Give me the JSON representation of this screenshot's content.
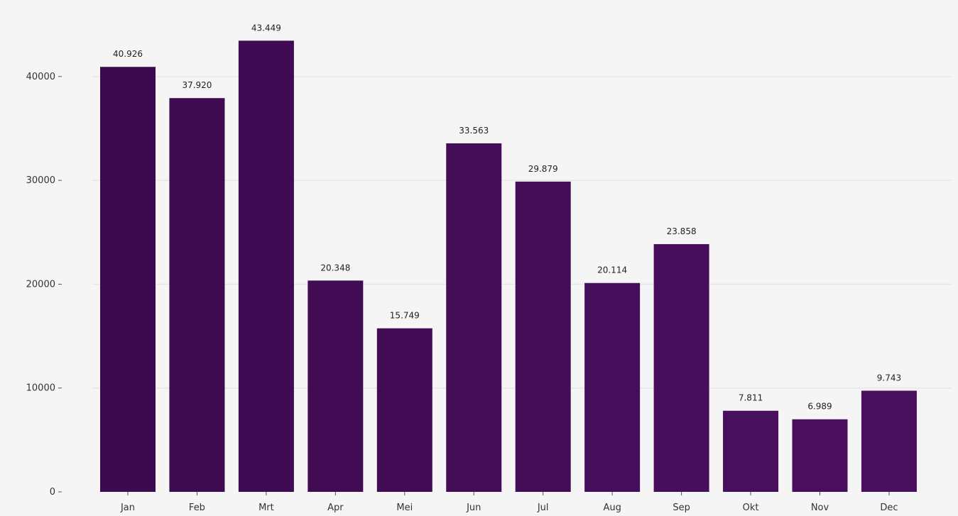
{
  "chart_data": {
    "type": "bar",
    "title": "",
    "xlabel": "",
    "ylabel": "",
    "categories": [
      "Jan",
      "Feb",
      "Mrt",
      "Apr",
      "Mei",
      "Jun",
      "Jul",
      "Aug",
      "Sep",
      "Okt",
      "Nov",
      "Dec"
    ],
    "values": [
      40926,
      37920,
      43449,
      20348,
      15749,
      33563,
      29879,
      20114,
      23858,
      7811,
      6989,
      9743
    ],
    "value_labels": [
      "40.926",
      "37.920",
      "43.449",
      "20.348",
      "15.749",
      "33.563",
      "29.879",
      "20.114",
      "23.858",
      "7.811",
      "6.989",
      "9.743"
    ],
    "yticks": [
      0,
      10000,
      20000,
      30000,
      40000
    ],
    "ytick_labels": [
      "0",
      "10000",
      "20000",
      "30000",
      "40000"
    ],
    "ylim": [
      0,
      46000
    ],
    "grid": "horizontal",
    "bar_color_dark": "#3d0a4f",
    "bar_color_light": "#4a1060",
    "background_color": "#f5f5f5",
    "grid_color": "#e6e6e6"
  }
}
